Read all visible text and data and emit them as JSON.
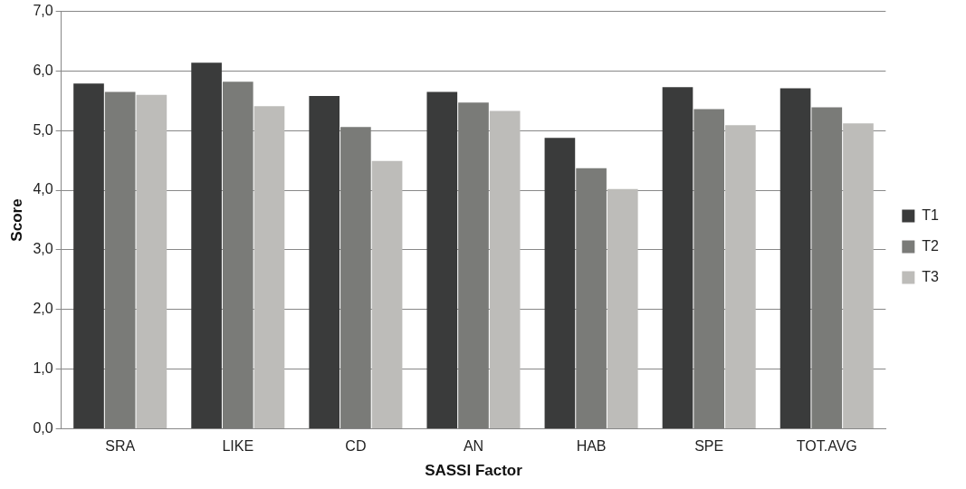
{
  "chart_data": {
    "type": "bar",
    "xlabel": "SASSI Factor",
    "ylabel": "Score",
    "categories": [
      "SRA",
      "LIKE",
      "CD",
      "AN",
      "HAB",
      "SPE",
      "TOT.AVG"
    ],
    "series": [
      {
        "name": "T1",
        "color": "#3a3b3b",
        "values": [
          5.79,
          6.14,
          5.58,
          5.65,
          4.88,
          5.73,
          5.71
        ]
      },
      {
        "name": "T2",
        "color": "#7a7b78",
        "values": [
          5.65,
          5.82,
          5.06,
          5.47,
          4.37,
          5.36,
          5.39
        ]
      },
      {
        "name": "T3",
        "color": "#bdbcb9",
        "values": [
          5.6,
          5.41,
          4.49,
          5.33,
          4.02,
          5.09,
          5.12
        ]
      }
    ],
    "ylim": [
      0,
      7
    ],
    "yticks": [
      {
        "value": 0,
        "label": "0,0"
      },
      {
        "value": 1,
        "label": "1,0"
      },
      {
        "value": 2,
        "label": "2,0"
      },
      {
        "value": 3,
        "label": "3,0"
      },
      {
        "value": 4,
        "label": "4,0"
      },
      {
        "value": 5,
        "label": "5,0"
      },
      {
        "value": 6,
        "label": "6,0"
      },
      {
        "value": 7,
        "label": "7,0"
      }
    ],
    "grid": "y",
    "legend": "right"
  }
}
